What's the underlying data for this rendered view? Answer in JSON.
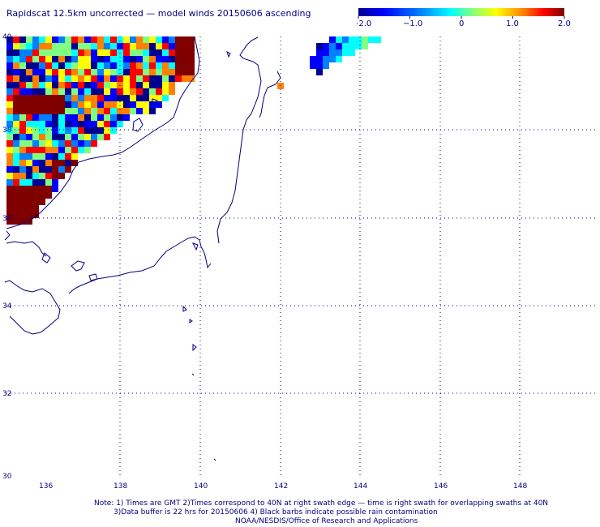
{
  "title": "Rapidscat 12.5km uncorrected — model winds 20150606 ascending",
  "colorbar": {
    "tick_labels": [
      "−2.0",
      "−1.0",
      "0",
      "1.0",
      "2.0"
    ],
    "colors": [
      "#00008f",
      "#0000ff",
      "#0080ff",
      "#00ffff",
      "#80ff80",
      "#ffff00",
      "#ff8000",
      "#ff0000",
      "#800000"
    ]
  },
  "axes": {
    "lat_labels": [
      "40",
      "38",
      "36",
      "34",
      "32",
      "30"
    ],
    "lon_labels": [
      "136",
      "138",
      "140",
      "142",
      "144",
      "146",
      "148"
    ]
  },
  "notes": [
    "Note: 1) Times are GMT 2)Times correspond to 40N at right swath edge — time is right swath for overlapping swaths at 40N",
    "3)Data buffer is 22 hrs for 20150606 4) Black barbs indicate possible rain contamination",
    "NOAA/NESDIS/Office of Research and Applications"
  ],
  "colors": {
    "coast": "#000080",
    "grid": "#000080",
    "background": "#ffffff"
  }
}
